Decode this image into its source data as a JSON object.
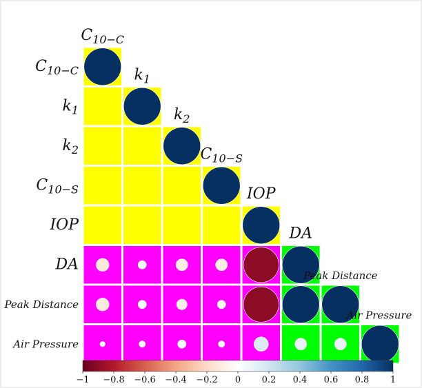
{
  "chart_data": {
    "type": "heatmap",
    "variables": [
      {
        "name": "C",
        "sub": "10−C"
      },
      {
        "name": "k",
        "sub": "1"
      },
      {
        "name": "k",
        "sub": "2"
      },
      {
        "name": "C",
        "sub": "10−S"
      },
      {
        "name": "IOP",
        "sub": ""
      },
      {
        "name": "DA",
        "sub": ""
      },
      {
        "name": "Peak Distance",
        "sub": ""
      },
      {
        "name": "Air Pressure",
        "sub": ""
      }
    ],
    "correlations": [
      [
        1.0
      ],
      [
        0.0,
        1.0
      ],
      [
        0.0,
        0.0,
        1.0
      ],
      [
        0.0,
        0.0,
        0.0,
        1.0
      ],
      [
        0.0,
        0.0,
        0.0,
        0.0,
        1.0
      ],
      [
        -0.12,
        0.05,
        -0.1,
        -0.1,
        -0.9,
        1.0
      ],
      [
        -0.12,
        0.05,
        -0.08,
        -0.05,
        -0.9,
        1.0,
        1.0
      ],
      [
        0.02,
        0.03,
        0.05,
        0.03,
        0.15,
        0.1,
        0.1,
        1.0
      ]
    ],
    "cell_background_colors": [
      [
        "#ffff00"
      ],
      [
        "#ffff00",
        "#ffff00"
      ],
      [
        "#ffff00",
        "#ffff00",
        "#ffff00"
      ],
      [
        "#ffff00",
        "#ffff00",
        "#ffff00",
        "#ffff00"
      ],
      [
        "#ffff00",
        "#ffff00",
        "#ffff00",
        "#ffff00",
        "#ffff00"
      ],
      [
        "#ff00ff",
        "#ff00ff",
        "#ff00ff",
        "#ff00ff",
        "#ff00ff",
        "#00ff00"
      ],
      [
        "#ff00ff",
        "#ff00ff",
        "#ff00ff",
        "#ff00ff",
        "#ff00ff",
        "#00ff00",
        "#00ff00"
      ],
      [
        "#ff00ff",
        "#ff00ff",
        "#ff00ff",
        "#ff00ff",
        "#ff00ff",
        "#00ff00",
        "#00ff00",
        "#00ff00"
      ]
    ],
    "colorbar": {
      "min": -1,
      "max": 1,
      "ticks": [
        "−1",
        "−0.8",
        "−0.6",
        "−0.4",
        "−0.2",
        "0",
        "0.2",
        "0.4",
        "0.6",
        "0.8",
        "1"
      ],
      "colors": [
        "#67001f",
        "#b2182b",
        "#d6604d",
        "#f4a582",
        "#fddbc7",
        "#ffffff",
        "#d1e5f0",
        "#92c5de",
        "#4393c3",
        "#2166ac",
        "#053061"
      ]
    }
  }
}
